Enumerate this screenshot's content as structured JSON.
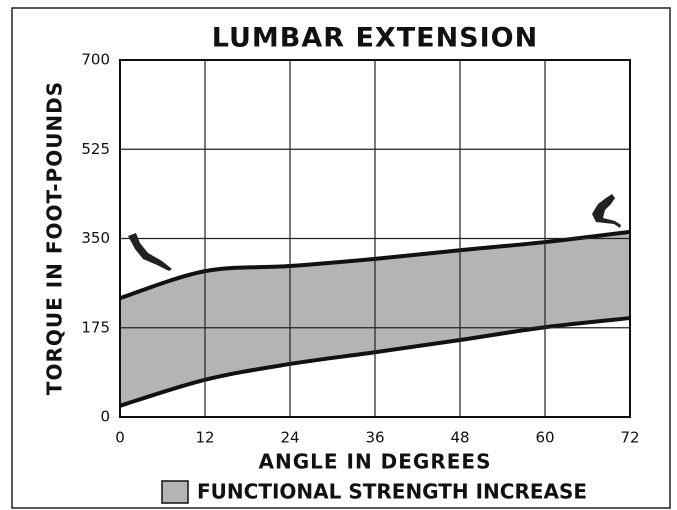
{
  "chart_data": {
    "type": "band",
    "title": "LUMBAR EXTENSION",
    "x_label": "ANGLE IN DEGREES",
    "y_label": "TORQUE IN FOOT-POUNDS",
    "x": [
      0,
      12,
      24,
      36,
      48,
      60,
      72
    ],
    "band": {
      "name": "FUNCTIONAL STRENGTH INCREASE",
      "color": "#b4b4b4",
      "line_color": "#111111",
      "upper": [
        233,
        286,
        296,
        310,
        327,
        343,
        363
      ],
      "lower": [
        22,
        73,
        104,
        127,
        151,
        176,
        194
      ]
    },
    "xlim": [
      0,
      72
    ],
    "xticks": [
      0,
      12,
      24,
      36,
      48,
      60,
      72
    ],
    "ylim": [
      0,
      700
    ],
    "yticks": [
      0,
      175,
      350,
      525,
      700
    ],
    "grid": true
  }
}
